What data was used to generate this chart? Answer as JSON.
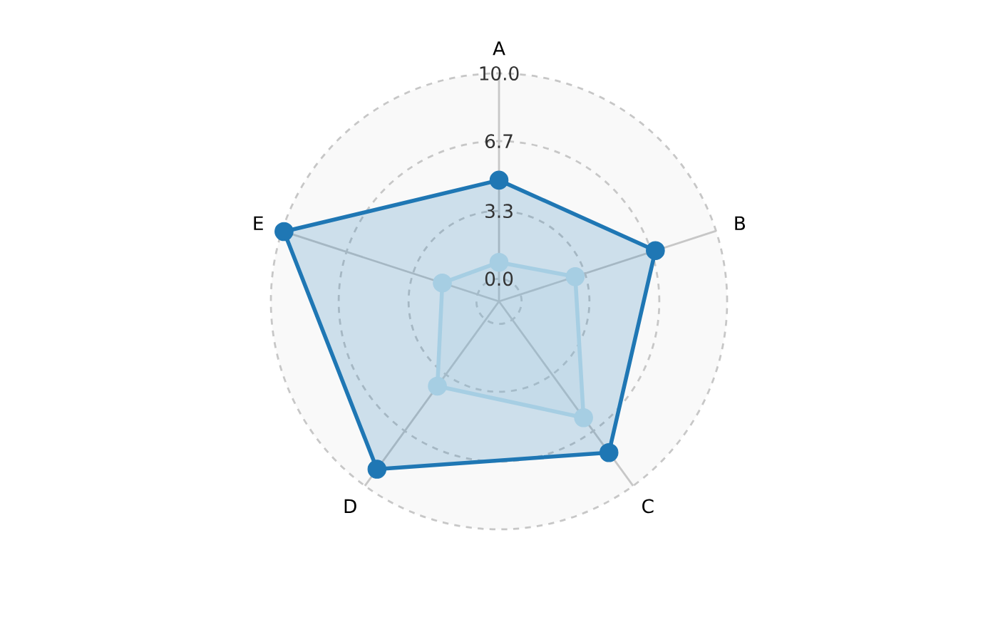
{
  "chart_data": {
    "type": "radar",
    "categories": [
      "A",
      "B",
      "C",
      "D",
      "E"
    ],
    "series": [
      {
        "color": "#1f77b4",
        "values": [
          4.8,
          6.9,
          8.0,
          9.0,
          9.9
        ]
      },
      {
        "color": "#a6cee3",
        "values": [
          0.8,
          2.8,
          5.9,
          4.0,
          1.8
        ]
      }
    ],
    "ylim": [
      -1.1,
      10
    ],
    "yticks": [
      {
        "value": 0,
        "label": "0.0"
      },
      {
        "value": 3.3,
        "label": "3.3"
      },
      {
        "value": 6.7,
        "label": "6.7"
      },
      {
        "value": 10,
        "label": "10.0"
      }
    ],
    "grid": true,
    "marker": "circle",
    "line_style": "solid"
  }
}
